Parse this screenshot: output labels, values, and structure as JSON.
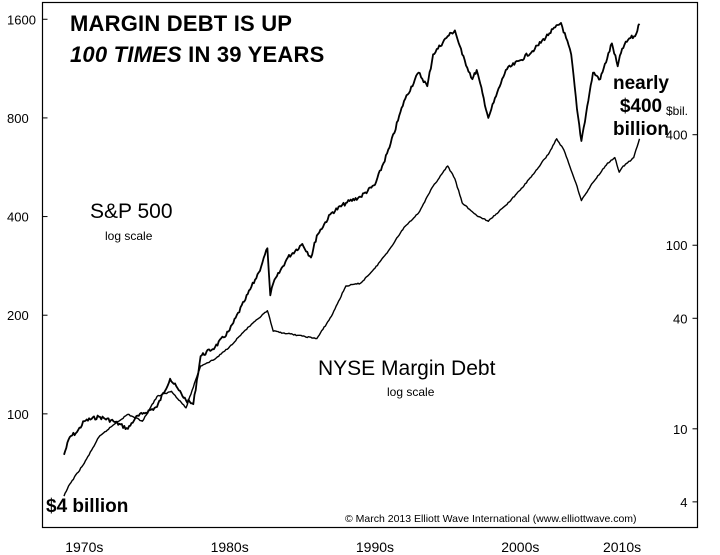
{
  "title": {
    "line1": "MARGIN DEBT IS UP",
    "line2_emph": "100 TIMES",
    "line2_rest": "IN 39 YEARS"
  },
  "annotations": {
    "start": "$4 billion",
    "end_line1": "nearly",
    "end_line2": "$400",
    "end_line3": "billion"
  },
  "copyright": "© March 2013 Elliott Wave International (www.elliottwave.com)",
  "colors": {
    "line": "#000000",
    "background": "#ffffff"
  },
  "chart_data": {
    "type": "line",
    "title": "MARGIN DEBT IS UP 100 TIMES IN 39 YEARS",
    "x_ticks": [
      "1970s",
      "1980s",
      "1990s",
      "2000s",
      "2010s"
    ],
    "x_range": [
      1973.5,
      2013.2
    ],
    "grid": false,
    "legend": "none",
    "left_axis": {
      "scale": "log",
      "ticks": [
        100,
        200,
        400,
        800,
        1600
      ],
      "range": [
        45,
        1800
      ]
    },
    "right_axis": {
      "scale": "log",
      "unit": "$bil.",
      "ticks": [
        4,
        10,
        40,
        100,
        400
      ],
      "range": [
        2.9,
        2100
      ]
    },
    "series": [
      {
        "name": "S&P 500",
        "sublabel": "log scale",
        "axis": "left",
        "points": [
          [
            1973.6,
            75
          ],
          [
            1974.0,
            85
          ],
          [
            1974.5,
            88
          ],
          [
            1975.0,
            95
          ],
          [
            1976.0,
            98
          ],
          [
            1977.0,
            95
          ],
          [
            1978.0,
            90
          ],
          [
            1978.5,
            97
          ],
          [
            1979.0,
            100
          ],
          [
            1980.0,
            105
          ],
          [
            1980.9,
            128
          ],
          [
            1981.5,
            118
          ],
          [
            1982.0,
            110
          ],
          [
            1982.5,
            107
          ],
          [
            1983.0,
            150
          ],
          [
            1984.0,
            160
          ],
          [
            1985.0,
            180
          ],
          [
            1986.0,
            220
          ],
          [
            1987.0,
            270
          ],
          [
            1987.6,
            320
          ],
          [
            1987.8,
            230
          ],
          [
            1988.0,
            250
          ],
          [
            1989.0,
            300
          ],
          [
            1990.0,
            330
          ],
          [
            1990.6,
            300
          ],
          [
            1991.0,
            350
          ],
          [
            1992.0,
            410
          ],
          [
            1993.0,
            440
          ],
          [
            1994.0,
            460
          ],
          [
            1995.0,
            500
          ],
          [
            1996.0,
            650
          ],
          [
            1997.0,
            900
          ],
          [
            1998.0,
            1100
          ],
          [
            1998.6,
            1000
          ],
          [
            1999.0,
            1250
          ],
          [
            2000.0,
            1420
          ],
          [
            2000.5,
            1480
          ],
          [
            2001.0,
            1250
          ],
          [
            2001.7,
            1050
          ],
          [
            2002.0,
            1120
          ],
          [
            2002.8,
            800
          ],
          [
            2003.0,
            850
          ],
          [
            2004.0,
            1120
          ],
          [
            2005.0,
            1200
          ],
          [
            2006.0,
            1300
          ],
          [
            2007.0,
            1450
          ],
          [
            2007.8,
            1560
          ],
          [
            2008.5,
            1250
          ],
          [
            2008.9,
            850
          ],
          [
            2009.2,
            680
          ],
          [
            2010.0,
            1100
          ],
          [
            2010.5,
            1050
          ],
          [
            2011.3,
            1350
          ],
          [
            2011.7,
            1150
          ],
          [
            2012.0,
            1300
          ],
          [
            2012.5,
            1400
          ],
          [
            2012.9,
            1420
          ],
          [
            2013.2,
            1550
          ]
        ]
      },
      {
        "name": "NYSE Margin Debt",
        "sublabel": "log scale",
        "axis": "right",
        "points": [
          [
            1973.6,
            4.3
          ],
          [
            1974.0,
            5
          ],
          [
            1975.0,
            6.5
          ],
          [
            1976.0,
            9
          ],
          [
            1977.0,
            10.5
          ],
          [
            1978.0,
            12
          ],
          [
            1979.0,
            11
          ],
          [
            1980.0,
            15
          ],
          [
            1981.0,
            16
          ],
          [
            1982.0,
            13
          ],
          [
            1983.0,
            22
          ],
          [
            1984.0,
            24
          ],
          [
            1985.0,
            28
          ],
          [
            1986.0,
            34
          ],
          [
            1987.0,
            40
          ],
          [
            1987.6,
            44
          ],
          [
            1988.0,
            34
          ],
          [
            1989.0,
            33
          ],
          [
            1990.0,
            32
          ],
          [
            1991.0,
            31
          ],
          [
            1992.0,
            41
          ],
          [
            1993.0,
            60
          ],
          [
            1994.0,
            62
          ],
          [
            1995.0,
            75
          ],
          [
            1996.0,
            95
          ],
          [
            1997.0,
            125
          ],
          [
            1998.0,
            150
          ],
          [
            1999.0,
            210
          ],
          [
            2000.0,
            270
          ],
          [
            2000.5,
            230
          ],
          [
            2001.0,
            170
          ],
          [
            2002.0,
            145
          ],
          [
            2002.8,
            135
          ],
          [
            2003.0,
            140
          ],
          [
            2004.0,
            165
          ],
          [
            2005.0,
            200
          ],
          [
            2006.0,
            250
          ],
          [
            2007.0,
            320
          ],
          [
            2007.5,
            380
          ],
          [
            2008.0,
            330
          ],
          [
            2008.9,
            210
          ],
          [
            2009.2,
            175
          ],
          [
            2010.0,
            220
          ],
          [
            2011.0,
            280
          ],
          [
            2011.5,
            300
          ],
          [
            2011.8,
            250
          ],
          [
            2012.0,
            265
          ],
          [
            2012.8,
            300
          ],
          [
            2013.2,
            380
          ]
        ]
      }
    ]
  }
}
